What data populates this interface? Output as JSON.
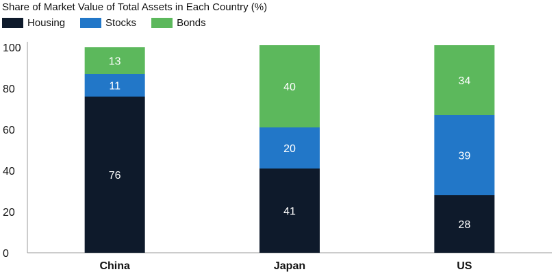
{
  "colors": {
    "housing": "#0e1a2b",
    "stocks": "#2277c8",
    "bonds": "#5cb85c",
    "axis": "#999999"
  },
  "chart_data": {
    "type": "bar",
    "stacked": true,
    "title": "Share of Market Value of Total Assets in Each Country (%)",
    "categories": [
      "China",
      "Japan",
      "US"
    ],
    "series": [
      {
        "name": "Housing",
        "values": [
          76,
          41,
          28
        ]
      },
      {
        "name": "Stocks",
        "values": [
          11,
          20,
          39
        ]
      },
      {
        "name": "Bonds",
        "values": [
          13,
          40,
          34
        ]
      }
    ],
    "yticks": [
      "0",
      "20",
      "40",
      "60",
      "80",
      "100"
    ],
    "ylim": [
      0,
      100
    ],
    "grid": false,
    "legend": "top-left"
  }
}
